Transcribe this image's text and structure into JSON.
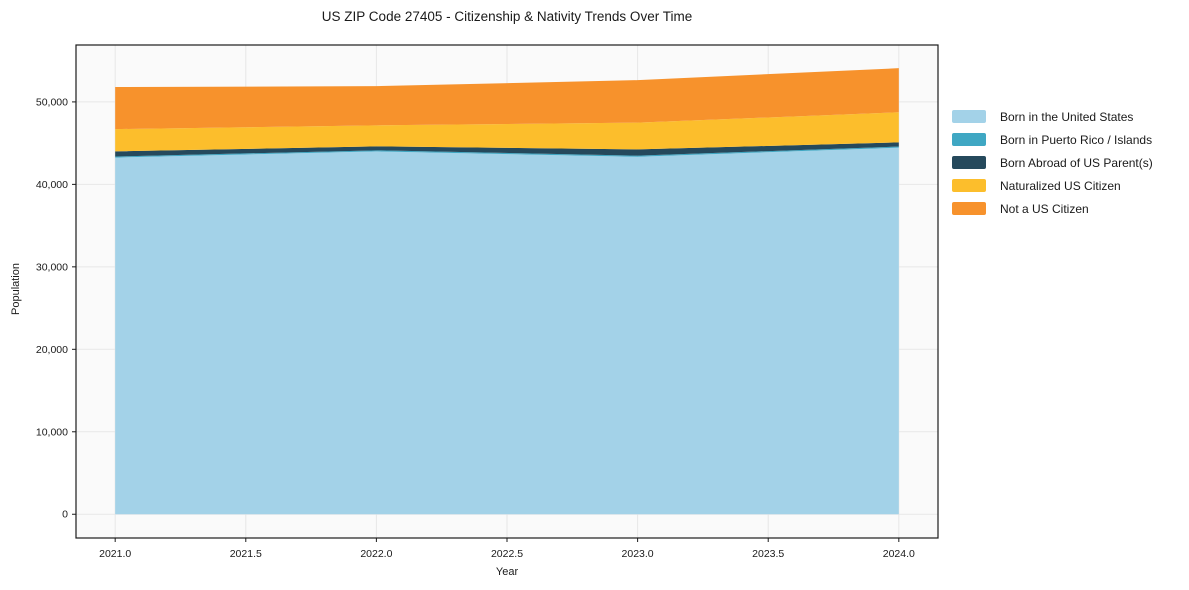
{
  "title": "US ZIP Code 27405 - Citizenship & Nativity Trends Over Time",
  "chart_data": {
    "type": "area",
    "stacked": true,
    "title": "US ZIP Code 27405 - Citizenship & Nativity Trends Over Time",
    "xlabel": "Year",
    "ylabel": "Population",
    "x": [
      2021,
      2022,
      2023,
      2024
    ],
    "series": [
      {
        "name": "Born in the United States",
        "color": "#a3d2e8",
        "values": [
          43250,
          44000,
          43350,
          44450
        ]
      },
      {
        "name": "Born in Puerto Rico / Islands",
        "color": "#3fa7c3",
        "values": [
          130,
          130,
          130,
          140
        ]
      },
      {
        "name": "Born Abroad of US Parent(s)",
        "color": "#25495c",
        "values": [
          620,
          480,
          760,
          500
        ]
      },
      {
        "name": "Naturalized US Citizen",
        "color": "#fcbe2c",
        "values": [
          2700,
          2550,
          3250,
          3650
        ]
      },
      {
        "name": "Not a US Citizen",
        "color": "#f7922c",
        "values": [
          5100,
          4750,
          5150,
          5350
        ]
      }
    ],
    "xlim": [
      2020.85,
      2024.15
    ],
    "ylim": [
      -2880,
      56900
    ],
    "x_ticks": [
      2021.0,
      2021.5,
      2022.0,
      2022.5,
      2023.0,
      2023.5,
      2024.0
    ],
    "x_tick_labels": [
      "2021.0",
      "2021.5",
      "2022.0",
      "2022.5",
      "2023.0",
      "2023.5",
      "2024.0"
    ],
    "y_ticks": [
      0,
      10000,
      20000,
      30000,
      40000,
      50000
    ],
    "y_tick_labels": [
      "0",
      "10,000",
      "20,000",
      "30,000",
      "40,000",
      "50,000"
    ],
    "grid": true,
    "legend_position": "right-of-plot"
  },
  "colors": {
    "plot_bg": "#fafafa",
    "grid": "#e7e7e7",
    "spine": "#1a1a1a",
    "tick_text": "#1a1a1a"
  }
}
